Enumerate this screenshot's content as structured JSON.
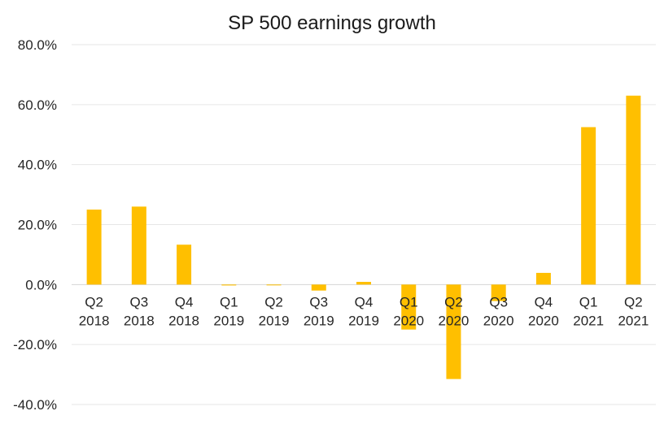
{
  "chart_data": {
    "type": "bar",
    "title": "SP 500 earnings growth",
    "xlabel": "",
    "ylabel": "",
    "categories": [
      [
        "Q2",
        "2018"
      ],
      [
        "Q3",
        "2018"
      ],
      [
        "Q4",
        "2018"
      ],
      [
        "Q1",
        "2019"
      ],
      [
        "Q2",
        "2019"
      ],
      [
        "Q3",
        "2019"
      ],
      [
        "Q4",
        "2019"
      ],
      [
        "Q1",
        "2020"
      ],
      [
        "Q2",
        "2020"
      ],
      [
        "Q3",
        "2020"
      ],
      [
        "Q4",
        "2020"
      ],
      [
        "Q1",
        "2021"
      ],
      [
        "Q2",
        "2021"
      ]
    ],
    "values": [
      25.0,
      26.0,
      13.3,
      -0.3,
      -0.2,
      -2.0,
      0.9,
      -15.0,
      -31.5,
      -5.5,
      3.9,
      52.5,
      63.0
    ],
    "ylim": [
      -40,
      80
    ],
    "yticks": [
      80,
      60,
      40,
      20,
      0,
      -20,
      -40
    ],
    "ytick_labels": [
      "80.0%",
      "60.0%",
      "40.0%",
      "20.0%",
      "0.0%",
      "-20.0%",
      "-40.0%"
    ],
    "grid": true,
    "legend": "none",
    "bar_color": "#ffbf00"
  }
}
